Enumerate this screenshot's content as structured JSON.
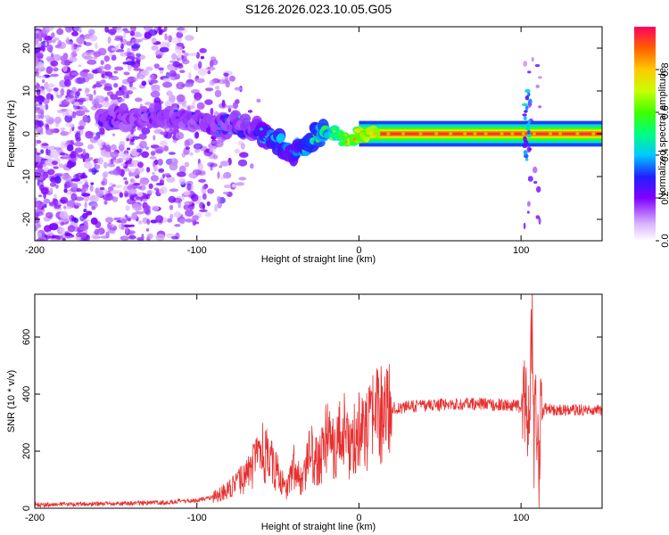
{
  "title": "S126.2026.023.10.05.G05",
  "chart_data": [
    {
      "type": "heatmap",
      "name": "spectrogram",
      "xlabel": "Height of straight line (km)",
      "ylabel": "Frequency (Hz)",
      "xlim": [
        -200,
        150
      ],
      "ylim": [
        -25,
        25
      ],
      "xticks": [
        -200,
        -100,
        0,
        100
      ],
      "yticks": [
        -20,
        -10,
        0,
        10,
        20
      ],
      "colorbar": {
        "label": "Normalized spectral amplitude",
        "range": [
          0.0,
          1.0
        ],
        "ticks": [
          0.0,
          0.2,
          0.4,
          0.6,
          0.8
        ],
        "tick_labels": [
          "0.0",
          "0.2",
          "0.4",
          "0.6",
          "0.8"
        ]
      },
      "ridge": {
        "x": [
          -155,
          -140,
          -120,
          -100,
          -85,
          -75,
          -65,
          -60,
          -50,
          -45,
          -40,
          -32,
          -28,
          -20,
          -15,
          -10,
          -5,
          0,
          10,
          20,
          40,
          60,
          80,
          100,
          105,
          110,
          150
        ],
        "freq": [
          4,
          4,
          4,
          3,
          2,
          2,
          1,
          0,
          -2,
          -4,
          -4,
          -2,
          -1,
          0,
          0,
          -1,
          -1,
          0,
          0,
          0,
          0,
          0,
          0,
          0,
          0,
          0,
          0
        ],
        "amplitude": [
          0.35,
          0.3,
          0.3,
          0.3,
          0.35,
          0.4,
          0.4,
          0.45,
          0.5,
          0.5,
          0.45,
          0.5,
          0.55,
          0.6,
          0.7,
          0.75,
          0.8,
          0.85,
          0.9,
          0.92,
          0.95,
          0.95,
          0.95,
          0.95,
          0.95,
          0.95,
          0.95
        ]
      }
    },
    {
      "type": "line",
      "name": "snr",
      "xlabel": "Height of straight line (km)",
      "ylabel": "SNR (10 * v/v)",
      "xlim": [
        -200,
        150
      ],
      "ylim": [
        0,
        750
      ],
      "xticks": [
        -200,
        -100,
        0,
        100
      ],
      "yticks": [
        0,
        200,
        400,
        600
      ],
      "color": "#e83030",
      "series": [
        {
          "name": "SNR",
          "x": [
            -200,
            -180,
            -160,
            -140,
            -120,
            -100,
            -90,
            -80,
            -70,
            -65,
            -60,
            -55,
            -50,
            -45,
            -40,
            -35,
            -30,
            -25,
            -20,
            -15,
            -10,
            -5,
            0,
            5,
            10,
            20,
            30,
            40,
            60,
            80,
            95,
            100,
            103,
            105,
            106,
            107,
            108,
            109,
            110,
            111,
            112,
            115,
            120,
            130,
            150
          ],
          "y": [
            12,
            14,
            15,
            18,
            20,
            28,
            40,
            65,
            110,
            150,
            200,
            170,
            120,
            60,
            150,
            80,
            200,
            150,
            260,
            200,
            280,
            200,
            300,
            260,
            320,
            350,
            355,
            360,
            365,
            365,
            360,
            355,
            380,
            300,
            550,
            650,
            200,
            400,
            300,
            150,
            320,
            350,
            345,
            345,
            345
          ]
        }
      ]
    }
  ],
  "colors": {
    "snr_line": "#e83030",
    "frame": "#000000",
    "background": "#ffffff"
  }
}
